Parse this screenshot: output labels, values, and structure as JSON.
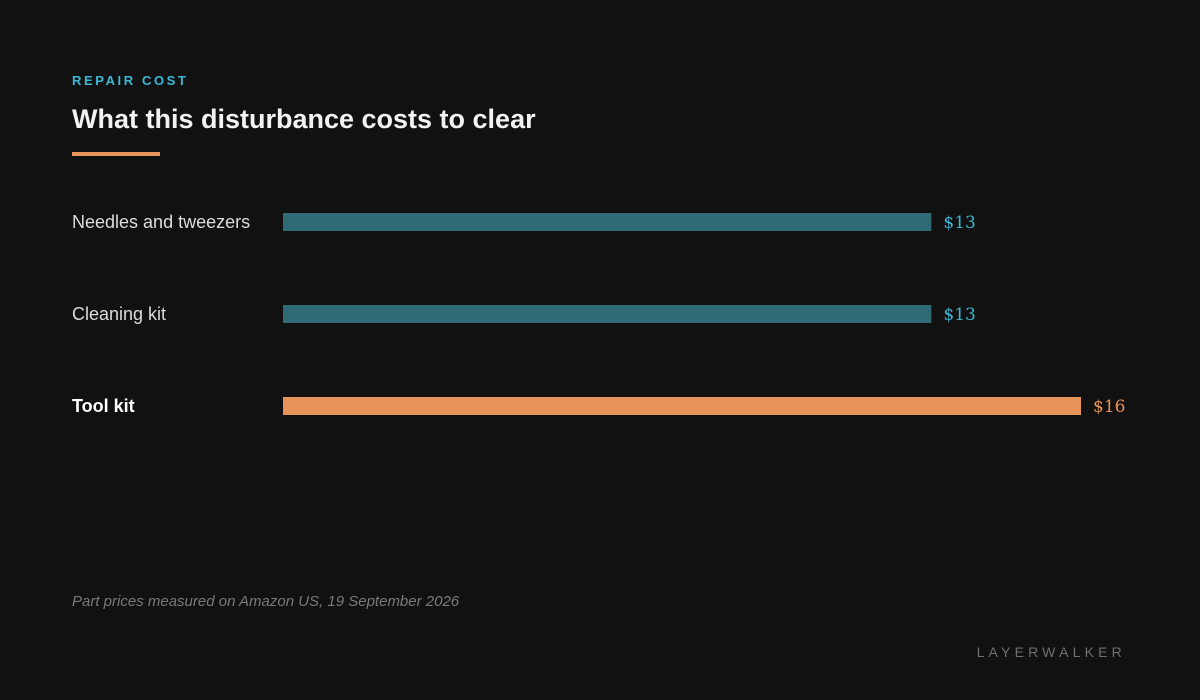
{
  "eyebrow": "REPAIR COST",
  "title": "What this disturbance costs to clear",
  "footnote": "Part prices measured on Amazon US, 19 September 2026",
  "brand": "LAYERWALKER",
  "colors": {
    "background": "#111111",
    "accent": "#e8935a",
    "eyebrow": "#3bb8d6",
    "bar_default": "#2e6b74",
    "value_default": "#3bb8d6",
    "bar_highlight": "#e8935a",
    "label_default": "#dcdcdc",
    "label_highlight": "#ffffff"
  },
  "chart_data": {
    "type": "bar",
    "orientation": "horizontal",
    "categories": [
      "Needles and tweezers",
      "Cleaning kit",
      "Tool kit"
    ],
    "values": [
      13,
      13,
      16
    ],
    "value_labels": [
      "$13",
      "$13",
      "$16"
    ],
    "highlight": [
      false,
      false,
      true
    ],
    "xlim": [
      0,
      16
    ],
    "grid": false
  }
}
